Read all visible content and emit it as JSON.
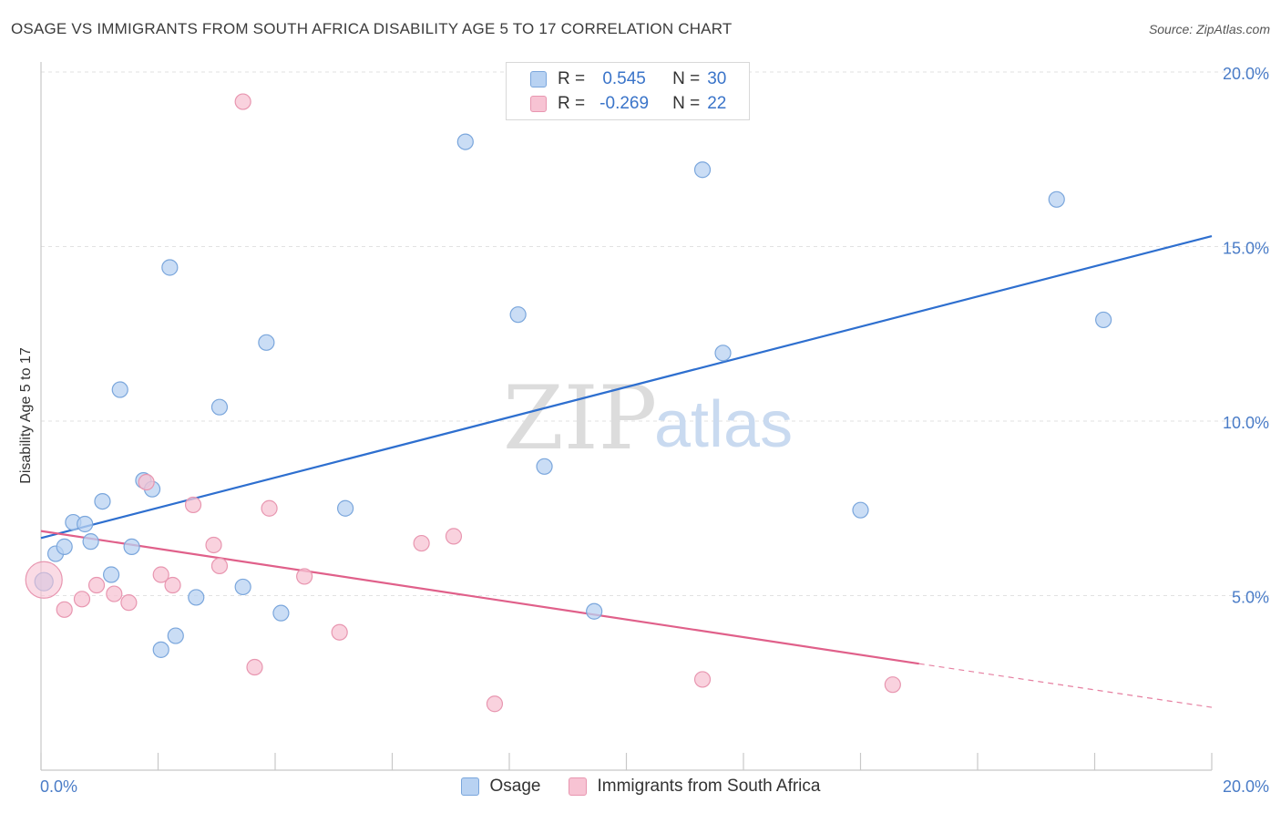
{
  "title": "OSAGE VS IMMIGRANTS FROM SOUTH AFRICA DISABILITY AGE 5 TO 17 CORRELATION CHART",
  "source": "Source: ZipAtlas.com",
  "watermark": {
    "zip": "ZIP",
    "atlas": "atlas"
  },
  "legend_top": {
    "rows": [
      {
        "r_label": "R =",
        "r_value": "0.545",
        "n_label": "N =",
        "n_value": "30"
      },
      {
        "r_label": "R =",
        "r_value": "-0.269",
        "n_label": "N =",
        "n_value": "22"
      }
    ]
  },
  "legend_bottom": [
    {
      "label": "Osage"
    },
    {
      "label": "Immigrants from South Africa"
    }
  ],
  "colors": {
    "osage_fill": "#b8d2f2",
    "osage_stroke": "#7aa6dc",
    "osage_line": "#2e6fcf",
    "sa_fill": "#f7c3d3",
    "sa_stroke": "#e896b0",
    "sa_line": "#e0608a",
    "grid": "#e2e2e2",
    "tick_text": "#4a7cc7"
  },
  "chart_data": {
    "type": "scatter",
    "title": "OSAGE VS IMMIGRANTS FROM SOUTH AFRICA DISABILITY AGE 5 TO 17 CORRELATION CHART",
    "xlabel": "",
    "ylabel": "Disability Age 5 to 17",
    "xlim": [
      0,
      20
    ],
    "ylim": [
      0,
      20
    ],
    "x_tick_labels": [
      "0.0%",
      "20.0%"
    ],
    "y_ticks": [
      5,
      10,
      15,
      20
    ],
    "y_tick_labels": [
      "5.0%",
      "10.0%",
      "15.0%",
      "20.0%"
    ],
    "grid": "horizontal-dashed",
    "legend_position": "bottom",
    "series": [
      {
        "name": "Osage",
        "R": 0.545,
        "N": 30,
        "points": [
          [
            0.05,
            5.4
          ],
          [
            0.25,
            6.2
          ],
          [
            0.4,
            6.4
          ],
          [
            0.55,
            7.1
          ],
          [
            0.75,
            7.05
          ],
          [
            0.85,
            6.55
          ],
          [
            1.05,
            7.7
          ],
          [
            1.2,
            5.6
          ],
          [
            1.35,
            10.9
          ],
          [
            1.55,
            6.4
          ],
          [
            1.75,
            8.3
          ],
          [
            1.9,
            8.05
          ],
          [
            2.05,
            3.45
          ],
          [
            2.2,
            14.4
          ],
          [
            2.3,
            3.85
          ],
          [
            2.65,
            4.95
          ],
          [
            3.05,
            10.4
          ],
          [
            3.45,
            5.25
          ],
          [
            3.85,
            12.25
          ],
          [
            4.1,
            4.5
          ],
          [
            5.2,
            7.5
          ],
          [
            7.25,
            18.0
          ],
          [
            8.15,
            13.05
          ],
          [
            8.6,
            8.7
          ],
          [
            9.45,
            4.55
          ],
          [
            11.3,
            17.2
          ],
          [
            11.65,
            11.95
          ],
          [
            14.0,
            7.45
          ],
          [
            17.35,
            16.35
          ],
          [
            18.15,
            12.9
          ]
        ],
        "trend": {
          "x1": 0,
          "y1": 6.65,
          "x2": 20,
          "y2": 15.3
        }
      },
      {
        "name": "Immigrants from South Africa",
        "R": -0.269,
        "N": 22,
        "points": [
          [
            0.05,
            5.45
          ],
          [
            0.4,
            4.6
          ],
          [
            0.7,
            4.9
          ],
          [
            0.95,
            5.3
          ],
          [
            1.25,
            5.05
          ],
          [
            1.5,
            4.8
          ],
          [
            1.8,
            8.25
          ],
          [
            2.05,
            5.6
          ],
          [
            2.25,
            5.3
          ],
          [
            2.6,
            7.6
          ],
          [
            2.95,
            6.45
          ],
          [
            3.05,
            5.85
          ],
          [
            3.45,
            19.15
          ],
          [
            3.65,
            2.95
          ],
          [
            3.9,
            7.5
          ],
          [
            4.5,
            5.55
          ],
          [
            5.1,
            3.95
          ],
          [
            6.5,
            6.5
          ],
          [
            7.05,
            6.7
          ],
          [
            7.75,
            1.9
          ],
          [
            11.3,
            2.6
          ],
          [
            14.55,
            2.45
          ]
        ],
        "trend": {
          "x1": 0,
          "y1": 6.85,
          "x2": 15.0,
          "y2": 3.05
        },
        "trend_dashed": {
          "x1": 15.0,
          "y1": 3.05,
          "x2": 20,
          "y2": 1.8
        }
      }
    ]
  }
}
